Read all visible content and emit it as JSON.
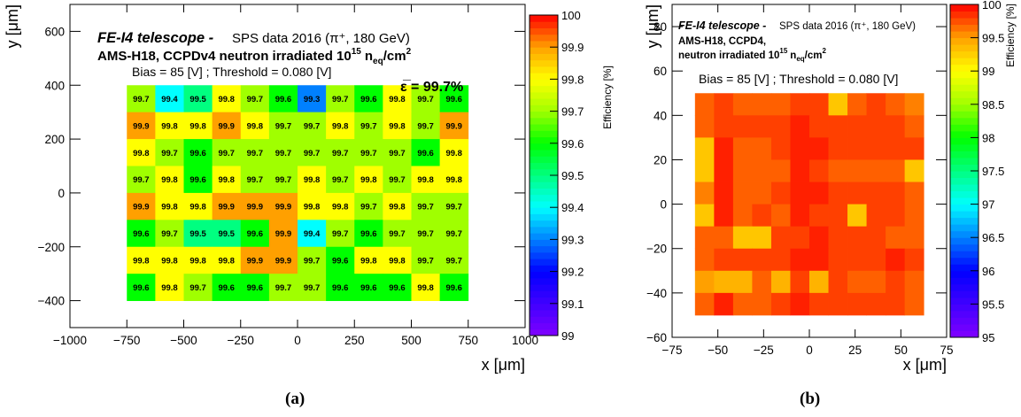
{
  "chart_data": [
    {
      "type": "heatmap",
      "panel_label": "(a)",
      "title_italic": "FE-I4 telescope -",
      "title_rest": "SPS data 2016 (π⁺, 180 GeV)",
      "subtitle_main": "AMS-H18, CCPDv4 neutron irradiated 10",
      "subtitle_exp": "15",
      "subtitle_unit": "n",
      "subtitle_sub": "eq",
      "subtitle_tail": "/cm",
      "subtitle_tail_exp": "2",
      "bias_text": "Bias = 85 [V] ; Threshold = 0.080 [V]",
      "mean_text": "ε̅ = 99.7%",
      "xlabel": "x [μm]",
      "ylabel": "y [μm]",
      "zlabel": "Efficiency [%]",
      "xlim": [
        -1000,
        1000
      ],
      "ylim": [
        -500,
        700
      ],
      "zlim": [
        99,
        100
      ],
      "x_ticks": [
        -1000,
        -750,
        -500,
        -250,
        0,
        250,
        500,
        750,
        1000
      ],
      "x_tick_labels": [
        "−1000",
        "−750",
        "−500",
        "−250",
        "0",
        "250",
        "500",
        "750",
        "1000"
      ],
      "y_ticks": [
        -400,
        -200,
        0,
        200,
        400,
        600
      ],
      "y_tick_labels": [
        "−400",
        "−200",
        "0",
        "200",
        "400",
        "600"
      ],
      "z_ticks": [
        99,
        99.1,
        99.2,
        99.3,
        99.4,
        99.5,
        99.6,
        99.7,
        99.8,
        99.9,
        100
      ],
      "z_tick_labels": [
        "99",
        "99.1",
        "99.2",
        "99.3",
        "99.4",
        "99.5",
        "99.6",
        "99.7",
        "99.8",
        "99.9",
        "100"
      ],
      "x_edges": [
        -750,
        -625,
        -500,
        -375,
        -250,
        -125,
        0,
        125,
        250,
        375,
        500,
        625,
        750
      ],
      "y_edges": [
        -400,
        -300,
        -200,
        -100,
        0,
        100,
        200,
        300,
        400
      ],
      "values": [
        [
          99.7,
          99.4,
          99.5,
          99.8,
          99.7,
          99.6,
          99.3,
          99.7,
          99.6,
          99.8,
          99.7,
          99.6
        ],
        [
          99.9,
          99.8,
          99.8,
          99.9,
          99.8,
          99.7,
          99.7,
          99.8,
          99.7,
          99.8,
          99.7,
          99.9
        ],
        [
          99.8,
          99.7,
          99.6,
          99.7,
          99.7,
          99.7,
          99.7,
          99.7,
          99.7,
          99.7,
          99.6,
          99.8
        ],
        [
          99.7,
          99.8,
          99.6,
          99.8,
          99.7,
          99.7,
          99.8,
          99.7,
          99.8,
          99.7,
          99.8,
          99.8
        ],
        [
          99.9,
          99.8,
          99.8,
          99.9,
          99.9,
          99.9,
          99.8,
          99.8,
          99.7,
          99.8,
          99.7,
          99.7
        ],
        [
          99.6,
          99.7,
          99.5,
          99.5,
          99.6,
          99.9,
          99.4,
          99.7,
          99.6,
          99.7,
          99.7,
          99.7
        ],
        [
          99.8,
          99.8,
          99.8,
          99.8,
          99.9,
          99.9,
          99.7,
          99.6,
          99.8,
          99.8,
          99.7,
          99.7
        ],
        [
          99.6,
          99.8,
          99.7,
          99.6,
          99.6,
          99.7,
          99.7,
          99.6,
          99.6,
          99.6,
          99.8,
          99.6
        ]
      ],
      "show_cell_labels": true
    },
    {
      "type": "heatmap",
      "panel_label": "(b)",
      "title_italic": "FE-I4 telescope -",
      "title_rest": "SPS data 2016 (π⁺, 180 GeV)",
      "subtitle_line1": "AMS-H18, CCPD4,",
      "subtitle_line2": "neutron irradiated 10",
      "subtitle_exp": "15",
      "subtitle_unit": "n",
      "subtitle_sub": "eq",
      "subtitle_tail": "/cm",
      "subtitle_tail_exp": "2",
      "bias_text": "Bias = 85 [V] ; Threshold = 0.080 [V]",
      "xlabel": "x [μm]",
      "ylabel": "y [μm]",
      "zlabel": "Efficiency [%]",
      "xlim": [
        -75,
        75
      ],
      "ylim": [
        -60,
        90
      ],
      "zlim": [
        95,
        100
      ],
      "x_ticks": [
        -75,
        -50,
        -25,
        0,
        25,
        50,
        75
      ],
      "x_tick_labels": [
        "−75",
        "−50",
        "−25",
        "0",
        "25",
        "50",
        "75"
      ],
      "y_ticks": [
        -60,
        -40,
        -20,
        0,
        20,
        40,
        60,
        80
      ],
      "y_tick_labels": [
        "−60",
        "−40",
        "−20",
        "0",
        "20",
        "40",
        "60",
        "80"
      ],
      "z_ticks": [
        95,
        95.5,
        96,
        96.5,
        97,
        97.5,
        98,
        98.5,
        99,
        99.5,
        100
      ],
      "z_tick_labels": [
        "95",
        "95.5",
        "96",
        "96.5",
        "97",
        "97.5",
        "98",
        "98.5",
        "99",
        "99.5",
        "100"
      ],
      "x_edges": [
        -62.5,
        -52.08,
        -41.67,
        -31.25,
        -20.83,
        -10.42,
        0,
        10.42,
        20.83,
        31.25,
        41.67,
        52.08,
        62.5
      ],
      "y_edges": [
        -50,
        -40,
        -30,
        -20,
        -10,
        0,
        10,
        20,
        30,
        40,
        50
      ],
      "values": [
        [
          99.7,
          99.8,
          99.7,
          99.7,
          99.7,
          99.8,
          99.8,
          99.3,
          99.7,
          99.8,
          99.7,
          99.6
        ],
        [
          99.7,
          99.8,
          99.8,
          99.8,
          99.8,
          99.9,
          99.8,
          99.8,
          99.8,
          99.8,
          99.8,
          99.7
        ],
        [
          99.3,
          99.9,
          99.7,
          99.7,
          99.8,
          99.9,
          99.9,
          99.8,
          99.8,
          99.8,
          99.8,
          99.8
        ],
        [
          99.3,
          99.9,
          99.7,
          99.7,
          99.7,
          99.9,
          99.8,
          99.7,
          99.7,
          99.7,
          99.7,
          99.3
        ],
        [
          99.6,
          99.9,
          99.7,
          99.7,
          99.8,
          99.9,
          99.9,
          99.8,
          99.8,
          99.8,
          99.8,
          99.7
        ],
        [
          99.3,
          99.9,
          99.7,
          99.8,
          99.7,
          99.9,
          99.8,
          99.8,
          99.3,
          99.8,
          99.8,
          99.7
        ],
        [
          99.7,
          99.7,
          99.3,
          99.3,
          99.8,
          99.8,
          99.9,
          99.8,
          99.8,
          99.8,
          99.7,
          99.7
        ],
        [
          99.7,
          99.8,
          99.8,
          99.8,
          99.8,
          99.9,
          99.9,
          99.8,
          99.8,
          99.8,
          99.9,
          99.8
        ],
        [
          99.5,
          99.4,
          99.4,
          99.7,
          99.4,
          99.8,
          99.4,
          99.8,
          99.7,
          99.7,
          99.8,
          99.7
        ],
        [
          99.7,
          99.9,
          99.7,
          99.7,
          99.8,
          99.9,
          99.8,
          99.8,
          99.8,
          99.8,
          99.8,
          99.7
        ]
      ],
      "show_cell_labels": false
    }
  ]
}
